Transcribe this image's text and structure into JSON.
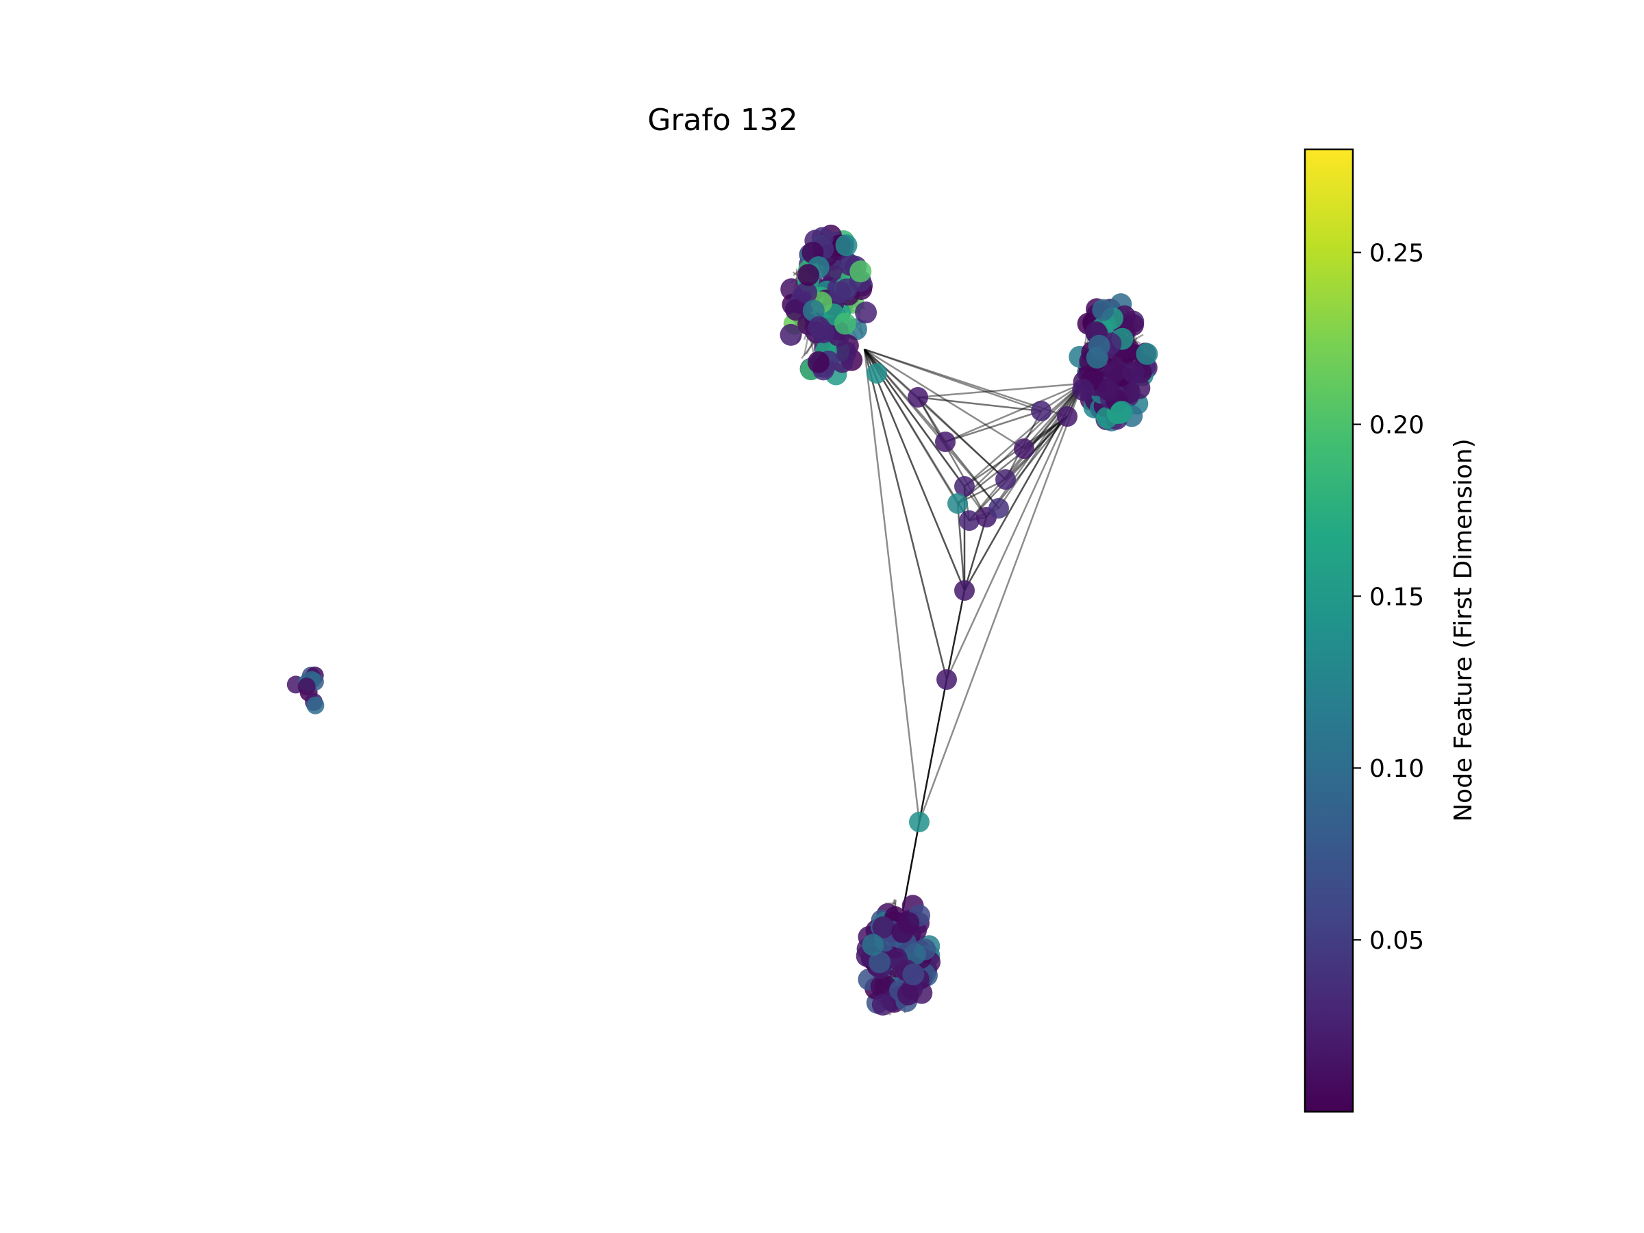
{
  "title": "Grafo 132",
  "chart_data": {
    "type": "network",
    "title": "Grafo 132",
    "colorbar": {
      "label": "Node Feature (First Dimension)",
      "colormap": "viridis",
      "range": [
        0.0,
        0.28
      ],
      "ticks": [
        0.05,
        0.1,
        0.15,
        0.2,
        0.25
      ],
      "tick_labels": [
        "0.05",
        "0.10",
        "0.15",
        "0.20",
        "0.25"
      ]
    },
    "edge_color": "#000000",
    "clusters": [
      {
        "name": "upper-left cluster",
        "value_range": [
          0.0,
          0.22
        ]
      },
      {
        "name": "upper-right cluster",
        "value_range": [
          0.0,
          0.17
        ]
      },
      {
        "name": "bottom cluster",
        "value_range": [
          0.0,
          0.12
        ]
      },
      {
        "name": "isolated left cluster",
        "value_range": [
          0.0,
          0.12
        ]
      }
    ],
    "bridge_node_values": [
      0.02,
      0.02,
      0.03,
      0.13,
      0.03,
      0.02,
      0.04,
      0.03,
      0.02,
      0.03,
      0.02,
      0.02,
      0.02,
      0.14
    ]
  }
}
